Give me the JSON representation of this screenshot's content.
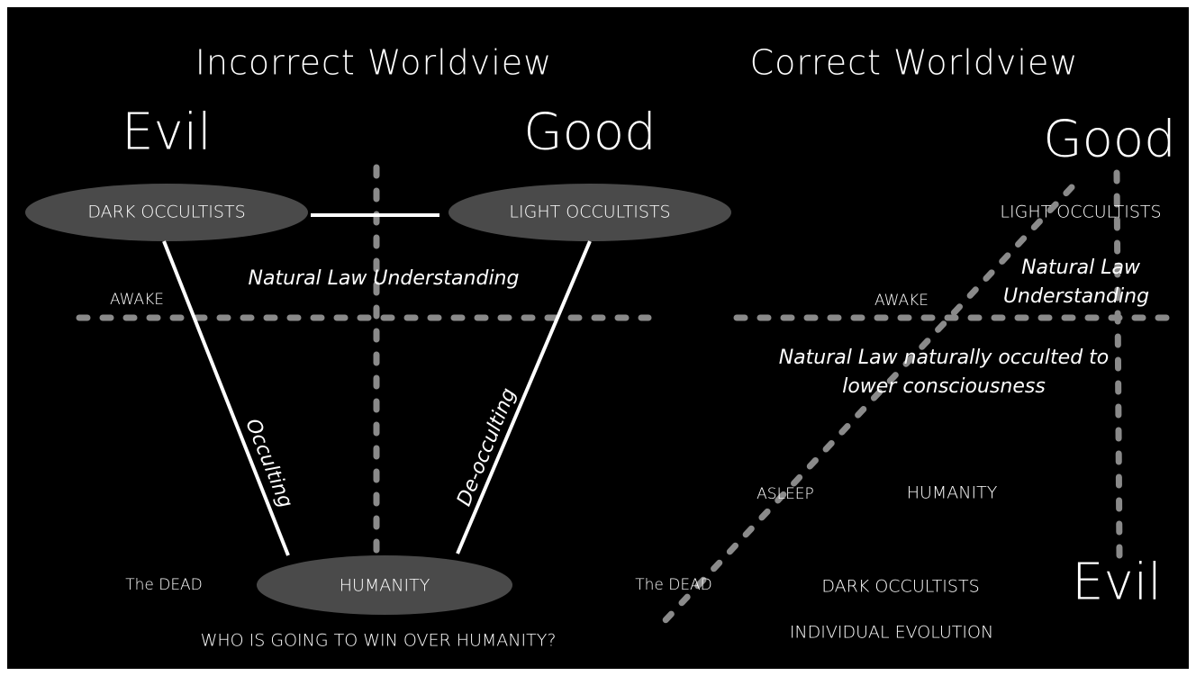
{
  "left": {
    "title": "Incorrect Worldview",
    "evil": "Evil",
    "good": "Good",
    "dark_node": "DARK OCCULTISTS",
    "light_node": "LIGHT OCCULTISTS",
    "understanding": "Natural Law Understanding",
    "awake": "AWAKE",
    "occulting": "Occulting",
    "de_occulting": "De-occulting",
    "humanity": "HUMANITY",
    "dead": "The DEAD",
    "question": "WHO IS GOING TO WIN OVER HUMANITY?"
  },
  "right": {
    "title": "Correct Worldview",
    "good": "Good",
    "light_node": "LIGHT OCCULTISTS",
    "understanding_1": "Natural Law",
    "understanding_2": "Understanding",
    "awake": "AWAKE",
    "occulted_1": "Natural Law naturally occulted to",
    "occulted_2": "lower consciousness",
    "asleep": "ASLEEP",
    "humanity": "HUMANITY",
    "dead": "The DEAD",
    "dark_node": "DARK OCCULTISTS",
    "evil": "Evil",
    "evolution": "INDIVIDUAL EVOLUTION"
  }
}
